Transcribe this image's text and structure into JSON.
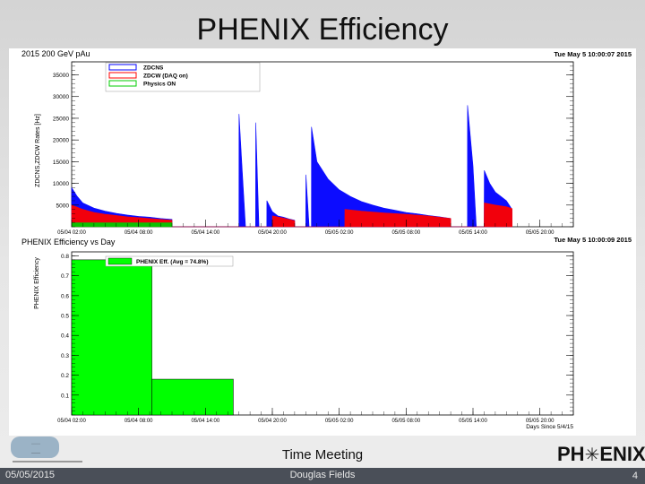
{
  "slide": {
    "title": "PHENIX Efficiency",
    "meeting": "Time Meeting",
    "date": "05/05/2015",
    "author": "Douglas Fields",
    "page_number": "4",
    "logo_left": "PH",
    "logo_right": "ENIX"
  },
  "chart_data": [
    {
      "type": "area",
      "title": "2015 200 GeV pAu",
      "timestamp": "Tue May 5 10:00:07 2015",
      "xlabel": "",
      "ylabel": "ZDCNS,ZDCW Rates [Hz]",
      "ylim": [
        0,
        38000
      ],
      "yticks": [
        5000,
        10000,
        15000,
        20000,
        25000,
        30000,
        35000
      ],
      "ytick_labels": [
        "5000",
        "10000",
        "15000",
        "20000",
        "25000",
        "30000",
        "35000"
      ],
      "x_tick_labels": [
        "05/04 02:00",
        "05/04 08:00",
        "05/04 14:00",
        "05/04 20:00",
        "05/05 02:00",
        "05/05 08:00",
        "05/05 14:00",
        "05/05 20:00"
      ],
      "x_unit": "hours since 05/04 02:00",
      "xlim": [
        0,
        45
      ],
      "legend_position": "top-left",
      "series": [
        {
          "name": "ZDCNS",
          "color": "#0000ff",
          "points": [
            [
              0.0,
              9000
            ],
            [
              0.5,
              7000
            ],
            [
              1.0,
              5500
            ],
            [
              2.0,
              4300
            ],
            [
              3.0,
              3600
            ],
            [
              4.0,
              3100
            ],
            [
              5.0,
              2700
            ],
            [
              6.0,
              2400
            ],
            [
              7.0,
              2200
            ],
            [
              8.0,
              1900
            ],
            [
              9.0,
              1700
            ],
            [
              9.01,
              0
            ],
            [
              15.0,
              0
            ],
            [
              15.01,
              26000
            ],
            [
              15.3,
              13000
            ],
            [
              15.6,
              0
            ],
            [
              16.5,
              0
            ],
            [
              16.51,
              24000
            ],
            [
              16.8,
              0
            ],
            [
              17.5,
              0
            ],
            [
              17.51,
              6000
            ],
            [
              18.0,
              3500
            ],
            [
              18.5,
              2500
            ],
            [
              19.0,
              2200
            ],
            [
              19.5,
              1800
            ],
            [
              20.0,
              1500
            ],
            [
              20.01,
              0
            ],
            [
              21.0,
              0
            ],
            [
              21.01,
              12000
            ],
            [
              21.3,
              0
            ],
            [
              21.5,
              0
            ],
            [
              21.51,
              23000
            ],
            [
              22.0,
              15000
            ],
            [
              23.0,
              11000
            ],
            [
              24.0,
              8500
            ],
            [
              25.0,
              7000
            ],
            [
              26.0,
              5800
            ],
            [
              27.0,
              5000
            ],
            [
              28.0,
              4300
            ],
            [
              29.0,
              3800
            ],
            [
              30.0,
              3300
            ],
            [
              31.0,
              3000
            ],
            [
              32.0,
              2600
            ],
            [
              33.0,
              2300
            ],
            [
              34.0,
              1900
            ],
            [
              34.01,
              0
            ],
            [
              35.5,
              0
            ],
            [
              35.51,
              28000
            ],
            [
              36.0,
              14000
            ],
            [
              36.3,
              0
            ],
            [
              37.0,
              0
            ],
            [
              37.01,
              13000
            ],
            [
              37.5,
              10000
            ],
            [
              38.0,
              8000
            ],
            [
              38.5,
              7000
            ],
            [
              39.0,
              6000
            ],
            [
              39.5,
              4000
            ],
            [
              39.51,
              0
            ]
          ]
        },
        {
          "name": "ZDCW (DAQ on)",
          "color": "#ff0000",
          "points": [
            [
              0.0,
              5000
            ],
            [
              0.5,
              4500
            ],
            [
              1.0,
              4000
            ],
            [
              2.0,
              3300
            ],
            [
              3.0,
              2900
            ],
            [
              4.0,
              2600
            ],
            [
              5.0,
              2300
            ],
            [
              6.0,
              2100
            ],
            [
              7.0,
              1900
            ],
            [
              8.0,
              1700
            ],
            [
              9.0,
              1500
            ],
            [
              9.01,
              0
            ],
            [
              18.0,
              0
            ],
            [
              18.01,
              2500
            ],
            [
              19.0,
              2000
            ],
            [
              20.0,
              1400
            ],
            [
              20.01,
              0
            ],
            [
              24.5,
              0
            ],
            [
              24.51,
              4000
            ],
            [
              26.0,
              3600
            ],
            [
              28.0,
              3200
            ],
            [
              30.0,
              2900
            ],
            [
              32.0,
              2500
            ],
            [
              34.0,
              1900
            ],
            [
              34.01,
              0
            ],
            [
              37.0,
              0
            ],
            [
              37.01,
              5500
            ],
            [
              38.0,
              5000
            ],
            [
              39.0,
              4600
            ],
            [
              39.5,
              4200
            ],
            [
              39.51,
              0
            ]
          ]
        },
        {
          "name": "Physics ON",
          "color": "#00cc00",
          "points": [
            [
              0.0,
              900
            ],
            [
              9.0,
              900
            ],
            [
              9.01,
              0
            ]
          ]
        }
      ]
    },
    {
      "type": "bar",
      "title": "PHENIX Efficiency vs Day",
      "timestamp": "Tue May 5 10:00:09 2015",
      "xlabel": "Days Since 5/4/15",
      "ylabel": "PHENIX Efficiency",
      "ylim": [
        0,
        0.82
      ],
      "yticks": [
        0.1,
        0.2,
        0.3,
        0.4,
        0.5,
        0.6,
        0.7,
        0.8
      ],
      "ytick_labels": [
        "0.1",
        "0.2",
        "0.3",
        "0.4",
        "0.5",
        "0.6",
        "0.7",
        "0.8"
      ],
      "x_tick_labels": [
        "05/04 02:00",
        "05/04 08:00",
        "05/04 14:00",
        "05/04 20:00",
        "05/05 02:00",
        "05/05 08:00",
        "05/05 14:00",
        "05/05 20:00"
      ],
      "x_unit": "hours since 05/04 02:00",
      "xlim": [
        0,
        45
      ],
      "legend_position": "top-left",
      "series": [
        {
          "name": "PHENIX Eff. (Avg = 74.8%)",
          "color": "#00ff00",
          "bars": [
            {
              "x0": 0,
              "x1": 7.2,
              "value": 0.78
            },
            {
              "x0": 7.2,
              "x1": 14.5,
              "value": 0.18
            }
          ]
        }
      ]
    }
  ]
}
